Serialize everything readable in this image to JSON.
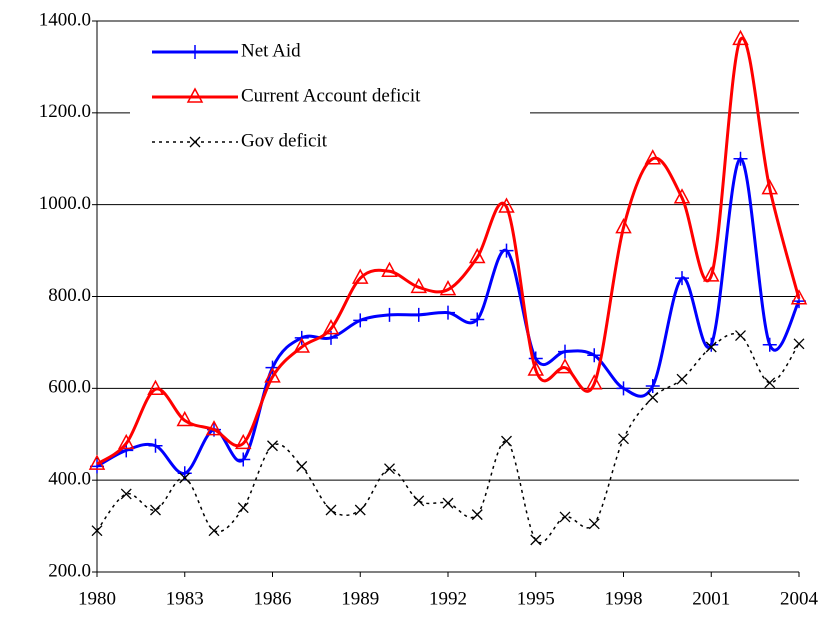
{
  "chart_data": {
    "type": "line",
    "x": [
      1980,
      1981,
      1982,
      1983,
      1984,
      1985,
      1986,
      1987,
      1988,
      1989,
      1990,
      1991,
      1992,
      1993,
      1994,
      1995,
      1996,
      1997,
      1998,
      1999,
      2000,
      2001,
      2002,
      2003,
      2004
    ],
    "series": [
      {
        "name": "Net Aid",
        "color": "#0000ff",
        "marker": "plus",
        "values": [
          430,
          465,
          475,
          415,
          510,
          445,
          645,
          710,
          710,
          748,
          760,
          760,
          765,
          750,
          900,
          665,
          680,
          672,
          600,
          605,
          840,
          695,
          1100,
          695,
          790
        ]
      },
      {
        "name": "Current Account deficit",
        "color": "#ff0000",
        "marker": "triangle",
        "values": [
          435,
          480,
          598,
          530,
          510,
          480,
          625,
          690,
          730,
          840,
          855,
          820,
          815,
          885,
          995,
          640,
          645,
          610,
          950,
          1100,
          1015,
          845,
          1360,
          1035,
          795
        ]
      },
      {
        "name": "Gov deficit",
        "color": "#000000",
        "marker": "x",
        "dashed": true,
        "values": [
          290,
          370,
          335,
          405,
          290,
          340,
          475,
          430,
          335,
          335,
          425,
          355,
          350,
          325,
          485,
          270,
          320,
          305,
          490,
          580,
          620,
          690,
          715,
          612,
          697
        ]
      }
    ],
    "xlim": [
      1980,
      2004
    ],
    "xticks": [
      1980,
      1983,
      1986,
      1989,
      1992,
      1995,
      1998,
      2001,
      2004
    ],
    "ylim": [
      200,
      1400
    ],
    "yticks": [
      {
        "value": 200,
        "label": "200.0"
      },
      {
        "value": 400,
        "label": "400.0"
      },
      {
        "value": 600,
        "label": "600.0"
      },
      {
        "value": 800,
        "label": "800.0"
      },
      {
        "value": 1000,
        "label": "1000.0"
      },
      {
        "value": 1200,
        "label": "1200.0"
      },
      {
        "value": 1400,
        "label": "1400.0"
      }
    ],
    "grid": true,
    "legend": "upper left"
  }
}
